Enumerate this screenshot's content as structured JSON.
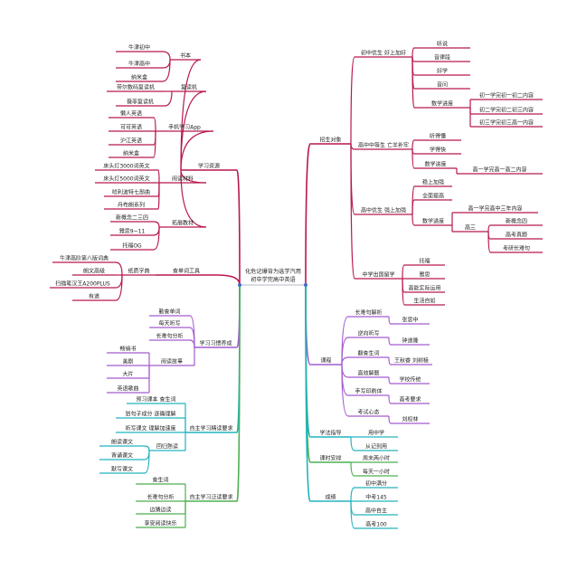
{
  "colors": {
    "crimson": "#b8174f",
    "purple": "#a35bd0",
    "teal": "#22b3bd",
    "green": "#4caf50",
    "root_dot": "#3f6fc6"
  },
  "center": {
    "line1": "化危记爆背为选学汽用",
    "line2": "初中学完高中英语"
  },
  "left": [
    {
      "label": "学习资源",
      "color": "crimson",
      "children": [
        {
          "label": "书本",
          "children": [
            {
              "label": "牛津初中"
            },
            {
              "label": "牛津高中"
            },
            {
              "label": "纳米盒"
            }
          ]
        },
        {
          "label": "复读机",
          "children": [
            {
              "label": "带尔数码复读机"
            },
            {
              "label": "薇菲复读机"
            }
          ]
        },
        {
          "label": "手机学习App",
          "children": [
            {
              "label": "懒人英语"
            },
            {
              "label": "可可英语"
            },
            {
              "label": "沪江英语"
            },
            {
              "label": "纳米盒"
            }
          ]
        },
        {
          "label": "阅读材料",
          "children": [
            {
              "label": "床头灯3000词英文"
            },
            {
              "label": "床头灯5000词英文"
            },
            {
              "label": "哈利波特七部曲"
            },
            {
              "label": "丹布朗系列"
            }
          ]
        },
        {
          "label": "拓展教材",
          "children": [
            {
              "label": "新概念二三四"
            },
            {
              "label": "雅思9~11"
            },
            {
              "label": "托福OG"
            }
          ]
        }
      ]
    },
    {
      "label": "查单词工具",
      "color": "crimson",
      "children": [
        {
          "label": "纸质字典",
          "children": [
            {
              "label": "牛津高阶第八版词典"
            },
            {
              "label": "朗文高级"
            },
            {
              "label": "扫描笔汉王A200PLUS"
            },
            {
              "label": "有道"
            }
          ]
        }
      ]
    },
    {
      "label": "学习习惯养成",
      "color": "purple",
      "children": [
        {
          "label": "勤查单词"
        },
        {
          "label": "每天听写"
        },
        {
          "label": "长难句分析"
        },
        {
          "label": "阅读故事",
          "children": [
            {
              "label": "畅销书"
            },
            {
              "label": "美剧"
            },
            {
              "label": "大片"
            },
            {
              "label": "英语歌曲"
            }
          ]
        }
      ]
    },
    {
      "label": "自主学习精读要求",
      "color": "teal",
      "children": [
        {
          "label": "预习课本 查生词"
        },
        {
          "label": "划句子成分 逐确理解"
        },
        {
          "label": "听写课文 理解加速度"
        },
        {
          "label": "回归熟读",
          "children": [
            {
              "label": "朗读课文"
            },
            {
              "label": "背诵课文"
            },
            {
              "label": "默写课文"
            }
          ]
        }
      ]
    },
    {
      "label": "自主学习泛读要求",
      "color": "green",
      "children": [
        {
          "label": "查生词"
        },
        {
          "label": "长难句分析"
        },
        {
          "label": "边猜边读"
        },
        {
          "label": "享受阅读快乐"
        }
      ]
    }
  ],
  "right": [
    {
      "label": "招生对象",
      "color": "crimson",
      "children": [
        {
          "label": "初中优生 好上加好",
          "children": [
            {
              "label": "听说"
            },
            {
              "label": "音律段"
            },
            {
              "label": "好学"
            },
            {
              "label": "音问"
            },
            {
              "label": "数学进度",
              "children": [
                {
                  "label": "初一学完初一初二内容"
                },
                {
                  "label": "初二学完初二初三内容"
                },
                {
                  "label": "初三学完初三高一内容"
                }
              ]
            }
          ]
        },
        {
          "label": "高中中等生 亡羊补牢",
          "children": [
            {
              "label": "听得懂"
            },
            {
              "label": "学得快"
            },
            {
              "label": "数学进度",
              "children": [
                {
                  "label": "高一学完高一高二内容"
                }
              ]
            }
          ]
        },
        {
          "label": "高中优生 强上加强",
          "children": [
            {
              "label": "稳上加强"
            },
            {
              "label": "全面提高"
            },
            {
              "label": "数学进度",
              "children": [
                {
                  "label": "高一学完高中三年内容"
                },
                {
                  "label": "高三",
                  "children": [
                    {
                      "label": "新概念四"
                    },
                    {
                      "label": "高考真题"
                    },
                    {
                      "label": "考研长难句"
                    }
                  ]
                }
              ]
            }
          ]
        },
        {
          "label": "中学出国留学",
          "children": [
            {
              "label": "托福"
            },
            {
              "label": "雅思"
            },
            {
              "label": "高能实际运用"
            },
            {
              "label": "生活自如"
            }
          ]
        }
      ]
    },
    {
      "label": "课程",
      "color": "purple",
      "children": [
        {
          "label": "长难句解析",
          "children": [
            {
              "label": "张思中"
            }
          ]
        },
        {
          "label": "逆向听写",
          "children": [
            {
              "label": "钟道隆"
            }
          ]
        },
        {
          "label": "翻查生词",
          "children": [
            {
              "label": "王秋睿 刘树棱"
            }
          ]
        },
        {
          "label": "高效解题",
          "children": [
            {
              "label": "学校传统"
            }
          ]
        },
        {
          "label": "手写印刷体",
          "children": [
            {
              "label": "高考要求"
            }
          ]
        },
        {
          "label": "考试心态",
          "children": [
            {
              "label": "刘权林"
            }
          ]
        }
      ]
    },
    {
      "label": "学法指导",
      "color": "teal",
      "children": [
        {
          "label": "用中学"
        },
        {
          "label": "从记到用"
        }
      ]
    },
    {
      "label": "课时安排",
      "color": "green",
      "children": [
        {
          "label": "周末两小时"
        },
        {
          "label": "每天一小时"
        }
      ]
    },
    {
      "label": "成绩",
      "color": "teal",
      "children": [
        {
          "label": "初中满分"
        },
        {
          "label": "中考145"
        },
        {
          "label": "高中自主"
        },
        {
          "label": "高考100"
        }
      ]
    }
  ]
}
